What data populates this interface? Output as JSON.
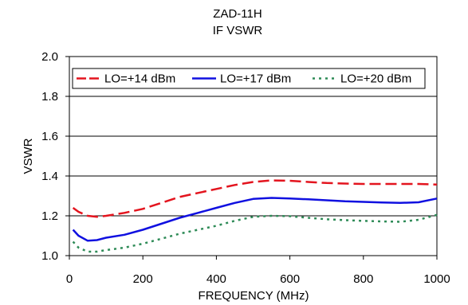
{
  "chart_data": {
    "type": "line",
    "title": "ZAD-11H",
    "subtitle": "IF VSWR",
    "xlabel": "FREQUENCY (MHz)",
    "ylabel": "VSWR",
    "xlim": [
      0,
      1000
    ],
    "ylim": [
      1.0,
      2.0
    ],
    "xticks": [
      0,
      200,
      400,
      600,
      800,
      1000
    ],
    "xtick_labels": [
      "0",
      "200",
      "400",
      "600",
      "800",
      "1000"
    ],
    "yticks": [
      1.0,
      1.2,
      1.4,
      1.6,
      1.8,
      2.0
    ],
    "ytick_labels": [
      "1.0",
      "1.2",
      "1.4",
      "1.6",
      "1.8",
      "2.0"
    ],
    "grid": "horizontal",
    "legend_position": "top",
    "series": [
      {
        "name": "LO=+14 dBm",
        "color": "#e3141e",
        "style": "dashed",
        "x": [
          10,
          25,
          50,
          75,
          100,
          150,
          200,
          250,
          300,
          350,
          400,
          450,
          500,
          550,
          600,
          650,
          700,
          750,
          800,
          850,
          900,
          950,
          1000
        ],
        "y": [
          1.24,
          1.22,
          1.2,
          1.195,
          1.2,
          1.215,
          1.235,
          1.265,
          1.295,
          1.315,
          1.335,
          1.355,
          1.37,
          1.378,
          1.376,
          1.37,
          1.365,
          1.362,
          1.36,
          1.36,
          1.36,
          1.36,
          1.357
        ]
      },
      {
        "name": "LO=+17 dBm",
        "color": "#1010e0",
        "style": "solid",
        "x": [
          10,
          25,
          50,
          75,
          100,
          150,
          200,
          250,
          300,
          350,
          400,
          450,
          500,
          550,
          600,
          650,
          700,
          750,
          800,
          850,
          900,
          950,
          1000
        ],
        "y": [
          1.13,
          1.1,
          1.075,
          1.078,
          1.09,
          1.105,
          1.13,
          1.16,
          1.19,
          1.215,
          1.24,
          1.265,
          1.285,
          1.29,
          1.287,
          1.283,
          1.278,
          1.273,
          1.27,
          1.267,
          1.265,
          1.268,
          1.287
        ]
      },
      {
        "name": "LO=+20 dBm",
        "color": "#2e8b57",
        "style": "dotted",
        "x": [
          10,
          25,
          50,
          75,
          100,
          150,
          200,
          250,
          300,
          350,
          400,
          450,
          500,
          550,
          600,
          650,
          700,
          750,
          800,
          850,
          900,
          950,
          1000
        ],
        "y": [
          1.07,
          1.04,
          1.02,
          1.02,
          1.028,
          1.04,
          1.06,
          1.085,
          1.11,
          1.13,
          1.15,
          1.175,
          1.195,
          1.2,
          1.198,
          1.19,
          1.183,
          1.178,
          1.175,
          1.172,
          1.17,
          1.18,
          1.205
        ]
      }
    ]
  }
}
